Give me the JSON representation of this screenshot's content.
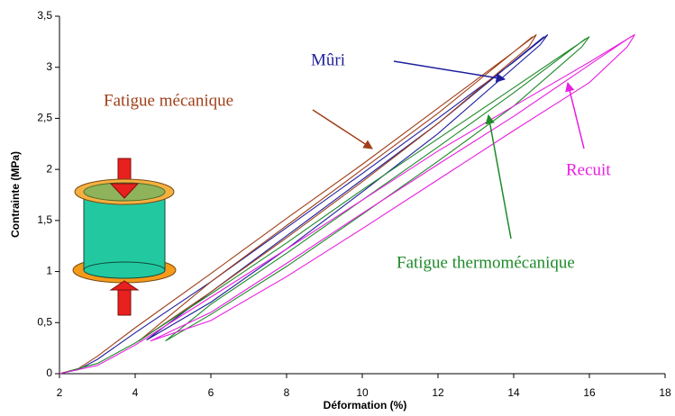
{
  "chart_data": {
    "type": "line",
    "xlabel": "Déformation (%)",
    "ylabel": "Contrainte (MPa)",
    "xlim": [
      2,
      18
    ],
    "xticks": [
      2,
      4,
      6,
      8,
      10,
      12,
      14,
      16,
      18
    ],
    "ylim": [
      0,
      3.5
    ],
    "yticks": [
      0,
      {
        "value": 0.5,
        "label": "0,5"
      },
      1,
      {
        "value": 1.5,
        "label": "1,5"
      },
      2,
      {
        "value": 2.5,
        "label": "2,5"
      },
      3,
      {
        "value": 3.5,
        "label": "3,5"
      }
    ],
    "series": [
      {
        "name": "Mûri",
        "color": "#1f1f9e",
        "x": [
          2,
          2.5,
          3,
          4,
          6,
          8,
          10,
          12,
          14,
          14.9,
          14.7,
          12,
          10,
          8,
          6,
          4.3,
          6,
          8,
          10,
          12,
          14.8
        ],
        "values": [
          0,
          0.04,
          0.14,
          0.4,
          0.9,
          1.43,
          1.96,
          2.5,
          3.05,
          3.32,
          3.22,
          2.35,
          1.78,
          1.22,
          0.7,
          0.33,
          0.8,
          1.35,
          1.9,
          2.45,
          3.3
        ]
      },
      {
        "name": "Fatigue mécanique",
        "color": "#a0401a",
        "x": [
          2,
          2.5,
          3,
          4,
          6,
          8,
          10,
          12,
          14,
          14.6,
          14.4,
          12,
          10,
          8,
          6,
          4.1,
          6,
          8,
          10,
          12,
          14.5
        ],
        "values": [
          0,
          0.05,
          0.17,
          0.45,
          0.98,
          1.52,
          2.05,
          2.6,
          3.15,
          3.32,
          3.2,
          2.45,
          1.88,
          1.33,
          0.8,
          0.32,
          0.9,
          1.45,
          2.0,
          2.55,
          3.3
        ]
      },
      {
        "name": "Fatigue thermomécanique",
        "color": "#1e8a2a",
        "x": [
          2,
          3,
          4,
          6,
          8,
          10,
          12,
          14,
          16,
          15.8,
          14,
          12,
          10,
          8,
          6,
          4.8,
          6,
          8,
          10,
          12,
          14,
          15.9
        ],
        "values": [
          0,
          0.1,
          0.3,
          0.78,
          1.28,
          1.8,
          2.3,
          2.8,
          3.3,
          3.2,
          2.62,
          2.08,
          1.56,
          1.05,
          0.58,
          0.32,
          0.68,
          1.18,
          1.7,
          2.22,
          2.75,
          3.28
        ]
      },
      {
        "name": "Recuit",
        "color": "#e81ee0",
        "x": [
          2,
          3,
          4,
          6,
          8,
          10,
          12,
          14,
          16,
          17.2,
          17,
          16,
          14,
          12,
          10,
          8,
          6,
          4.4,
          6,
          8,
          10,
          12,
          14,
          17.1
        ],
        "values": [
          0,
          0.08,
          0.28,
          0.75,
          1.22,
          1.7,
          2.18,
          2.62,
          3.05,
          3.32,
          3.2,
          2.85,
          2.38,
          1.9,
          1.42,
          0.95,
          0.52,
          0.32,
          0.6,
          1.08,
          1.57,
          2.05,
          2.52,
          3.3
        ]
      }
    ]
  }
}
